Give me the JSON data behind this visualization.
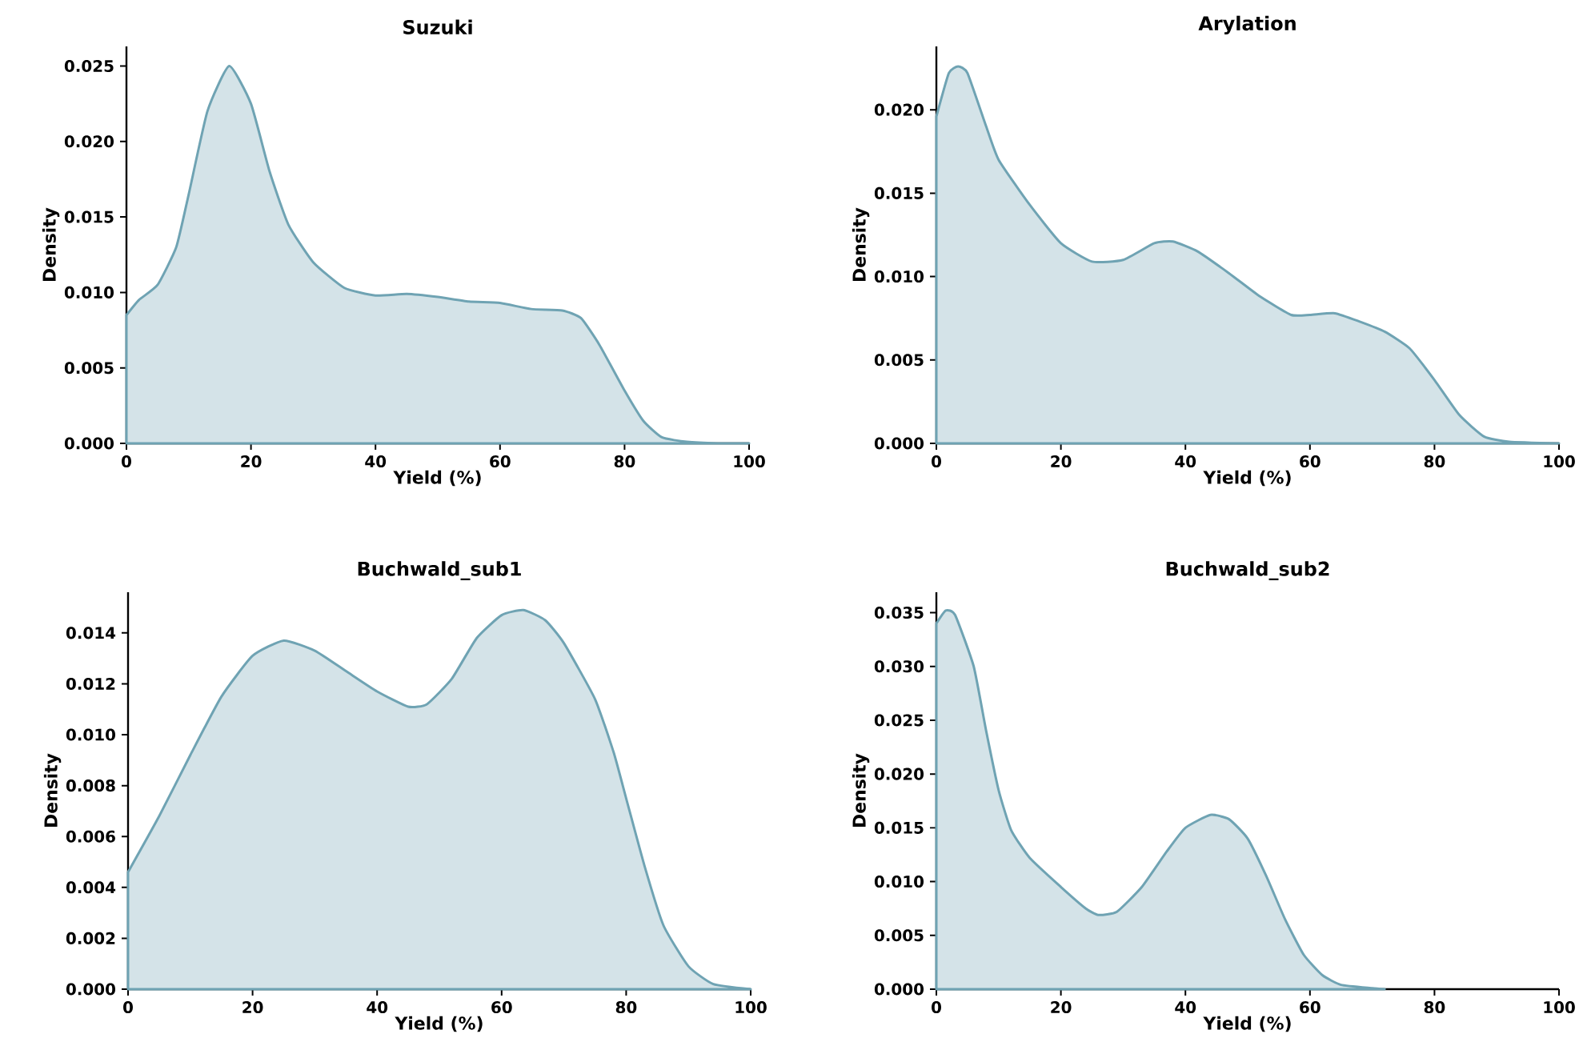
{
  "chart_data": [
    {
      "type": "area",
      "title": "Suzuki",
      "xlabel": "Yield (%)",
      "ylabel": "Density",
      "color": "#6fa3b3",
      "x": [
        0,
        2,
        5,
        8,
        10,
        13,
        16.5,
        20,
        23,
        26,
        30,
        35,
        40,
        45,
        50,
        55,
        60,
        65,
        70,
        73,
        76,
        80,
        83,
        86,
        90,
        95,
        100
      ],
      "values": [
        0.0085,
        0.0095,
        0.0105,
        0.013,
        0.0165,
        0.022,
        0.025,
        0.0225,
        0.018,
        0.0145,
        0.012,
        0.0103,
        0.0098,
        0.0099,
        0.0097,
        0.0094,
        0.0093,
        0.0089,
        0.0088,
        0.0083,
        0.0065,
        0.0035,
        0.0015,
        0.0004,
        0.0001,
        0,
        0
      ],
      "xlim": [
        0,
        100
      ],
      "xticks": [
        0,
        20,
        40,
        60,
        80,
        100
      ],
      "ylim": [
        0,
        0.0263
      ],
      "yticks": [
        {
          "value": 0,
          "label": "0.000"
        },
        {
          "value": 0.005,
          "label": "0.005"
        },
        {
          "value": 0.01,
          "label": "0.010"
        },
        {
          "value": 0.015,
          "label": "0.015"
        },
        {
          "value": 0.02,
          "label": "0.020"
        },
        {
          "value": 0.025,
          "label": "0.025"
        }
      ]
    },
    {
      "type": "area",
      "title": "Arylation",
      "xlabel": "Yield (%)",
      "ylabel": "Density",
      "color": "#6fa3b3",
      "x": [
        0,
        2,
        3.5,
        5,
        8,
        10,
        15,
        20,
        25,
        30,
        35,
        38,
        42,
        47,
        52,
        57,
        60,
        64,
        68,
        72,
        76,
        80,
        84,
        88,
        92,
        100
      ],
      "values": [
        0.0196,
        0.0222,
        0.0226,
        0.0222,
        0.019,
        0.017,
        0.0143,
        0.012,
        0.0109,
        0.011,
        0.012,
        0.0121,
        0.0115,
        0.0102,
        0.0088,
        0.0077,
        0.0077,
        0.0078,
        0.0073,
        0.0067,
        0.0057,
        0.0038,
        0.0017,
        0.0004,
        0.0001,
        0
      ],
      "xlim": [
        0,
        100
      ],
      "xticks": [
        0,
        20,
        40,
        60,
        80,
        100
      ],
      "ylim": [
        0,
        0.0238
      ],
      "yticks": [
        {
          "value": 0,
          "label": "0.000"
        },
        {
          "value": 0.005,
          "label": "0.005"
        },
        {
          "value": 0.01,
          "label": "0.010"
        },
        {
          "value": 0.015,
          "label": "0.015"
        },
        {
          "value": 0.02,
          "label": "0.020"
        }
      ]
    },
    {
      "type": "area",
      "title": "Buchwald_sub1",
      "xlabel": "Yield (%)",
      "ylabel": "Density",
      "color": "#6fa3b3",
      "x": [
        0,
        5,
        10,
        15,
        20,
        25,
        30,
        35,
        40,
        45,
        48,
        52,
        56,
        60,
        63.5,
        67,
        70,
        75,
        78,
        80,
        83,
        86,
        90,
        94,
        100
      ],
      "values": [
        0.0046,
        0.0068,
        0.0092,
        0.0115,
        0.0131,
        0.0137,
        0.0133,
        0.0125,
        0.0117,
        0.0111,
        0.0112,
        0.0122,
        0.0138,
        0.0147,
        0.0149,
        0.0145,
        0.0136,
        0.0114,
        0.0093,
        0.0075,
        0.0048,
        0.0025,
        0.0009,
        0.0002,
        0
      ],
      "xlim": [
        0,
        100
      ],
      "xticks": [
        0,
        20,
        40,
        60,
        80,
        100
      ],
      "ylim": [
        0,
        0.0156
      ],
      "yticks": [
        {
          "value": 0,
          "label": "0.000"
        },
        {
          "value": 0.002,
          "label": "0.002"
        },
        {
          "value": 0.004,
          "label": "0.004"
        },
        {
          "value": 0.006,
          "label": "0.006"
        },
        {
          "value": 0.008,
          "label": "0.008"
        },
        {
          "value": 0.01,
          "label": "0.010"
        },
        {
          "value": 0.012,
          "label": "0.012"
        },
        {
          "value": 0.014,
          "label": "0.014"
        }
      ]
    },
    {
      "type": "area",
      "title": "Buchwald_sub2",
      "xlabel": "Yield (%)",
      "ylabel": "Density",
      "color": "#6fa3b3",
      "x": [
        0,
        1.5,
        3,
        6,
        8,
        10,
        12,
        15,
        20,
        24,
        26,
        29,
        33,
        37,
        40,
        44,
        47,
        50,
        53,
        56,
        59,
        62,
        65,
        70,
        72
      ],
      "values": [
        0.034,
        0.0352,
        0.0348,
        0.03,
        0.024,
        0.0185,
        0.0148,
        0.0122,
        0.0095,
        0.0075,
        0.0069,
        0.0072,
        0.0095,
        0.0128,
        0.015,
        0.0162,
        0.0158,
        0.014,
        0.0105,
        0.0065,
        0.0032,
        0.0013,
        0.0004,
        0.0001,
        0
      ],
      "xlim": [
        0,
        100
      ],
      "xticks": [
        0,
        20,
        40,
        60,
        80,
        100
      ],
      "ylim": [
        0,
        0.0369
      ],
      "yticks": [
        {
          "value": 0,
          "label": "0.000"
        },
        {
          "value": 0.005,
          "label": "0.005"
        },
        {
          "value": 0.01,
          "label": "0.010"
        },
        {
          "value": 0.015,
          "label": "0.015"
        },
        {
          "value": 0.02,
          "label": "0.020"
        },
        {
          "value": 0.025,
          "label": "0.025"
        },
        {
          "value": 0.03,
          "label": "0.030"
        },
        {
          "value": 0.035,
          "label": "0.035"
        }
      ]
    }
  ]
}
